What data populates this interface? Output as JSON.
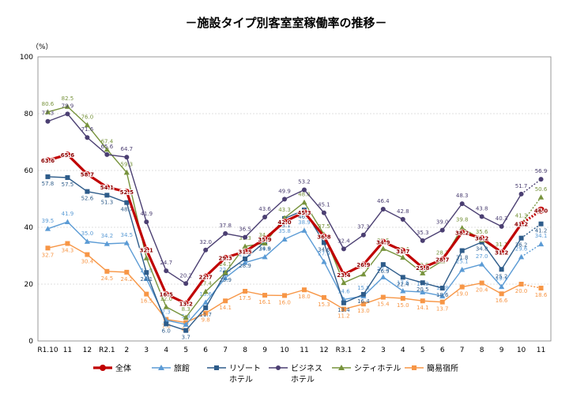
{
  "chart_data": {
    "type": "line",
    "title": "－施設タイプ別客室室稼働率の推移－",
    "ylabel": "（%）",
    "ylim": [
      0,
      100
    ],
    "yticks": [
      0,
      20,
      40,
      60,
      80,
      100
    ],
    "grid": true,
    "legend_position": "bottom",
    "categories": [
      "R1.10",
      "11",
      "12",
      "R2.1",
      "2",
      "3",
      "4",
      "5",
      "6",
      "7",
      "8",
      "9",
      "10",
      "11",
      "12",
      "R3.1",
      "2",
      "3",
      "4",
      "5",
      "6",
      "7",
      "8",
      "9",
      "10",
      "11"
    ],
    "series": [
      {
        "name": "全体",
        "color": "#c00000",
        "values": [
          63.6,
          65.6,
          58.7,
          54.1,
          52.5,
          32.1,
          16.5,
          13.2,
          22.7,
          29.3,
          31.5,
          35.9,
          42.0,
          45.3,
          36.8,
          23.4,
          26.9,
          34.9,
          31.7,
          25.8,
          28.7,
          38.2,
          36.2,
          31.2,
          41.2,
          46.0
        ]
      },
      {
        "name": "旅館",
        "color": "#5b9bd5",
        "values": [
          39.5,
          41.9,
          35.0,
          34.2,
          34.5,
          21.9,
          7.3,
          5.8,
          13.6,
          22.2,
          27.6,
          29.6,
          35.8,
          38.9,
          27.9,
          14.6,
          15.8,
          22.5,
          17.6,
          17.2,
          15.8,
          25.1,
          27.0,
          19.1,
          29.6,
          34.1
        ]
      },
      {
        "name": "リゾート\nホテル",
        "color": "#2e5c8a",
        "values": [
          57.8,
          57.5,
          52.6,
          51.3,
          48.7,
          24.1,
          6.0,
          3.7,
          11.7,
          23.9,
          28.9,
          34.9,
          43.1,
          46.1,
          34.6,
          13.4,
          16.4,
          26.9,
          22.4,
          20.5,
          18.6,
          31.8,
          34.8,
          25.2,
          36.2,
          41.2
        ]
      },
      {
        "name": "ビジネス\nホテル",
        "color": "#4b3f72",
        "values": [
          77.3,
          79.9,
          71.6,
          65.6,
          64.7,
          41.9,
          24.7,
          20.2,
          32.0,
          37.8,
          36.5,
          43.6,
          49.9,
          53.2,
          45.1,
          32.4,
          37.3,
          46.4,
          42.8,
          35.3,
          39.0,
          48.3,
          43.8,
          40.3,
          51.7,
          56.9
        ]
      },
      {
        "name": "シティホテル",
        "color": "#77933c",
        "values": [
          80.6,
          82.5,
          76.0,
          67.4,
          59.3,
          29.2,
          12.0,
          8.3,
          17.4,
          24.1,
          33.3,
          34.4,
          43.3,
          48.8,
          37.5,
          20.5,
          23.5,
          32.5,
          29.4,
          23.9,
          28.2,
          39.8,
          35.6,
          31.1,
          41.3,
          50.6
        ]
      },
      {
        "name": "簡易宿所",
        "color": "#f79646",
        "values": [
          32.7,
          34.3,
          30.4,
          24.5,
          24.2,
          16.5,
          7.6,
          6.5,
          9.8,
          14.1,
          17.5,
          16.1,
          16.0,
          18.0,
          15.3,
          11.2,
          13.0,
          15.4,
          15.0,
          14.1,
          13.7,
          19.0,
          20.4,
          16.6,
          20.0,
          18.6
        ]
      }
    ]
  }
}
